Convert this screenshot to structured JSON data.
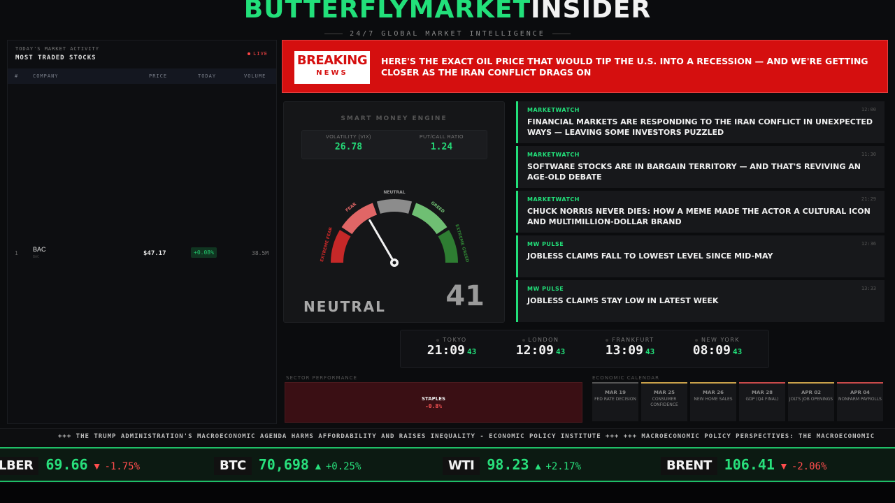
{
  "header": {
    "brand_green": "BUTTERFLYMARKET",
    "brand_white": "INSIDER",
    "tagline": "24/7 GLOBAL MARKET INTELLIGENCE"
  },
  "stocks_panel": {
    "subtitle": "TODAY'S MARKET ACTIVITY",
    "title": "MOST TRADED STOCKS",
    "live_label": "LIVE",
    "columns": [
      "#",
      "COMPANY",
      "PRICE",
      "TODAY",
      "VOLUME"
    ],
    "rows": [
      {
        "rank": "1",
        "company": "BAC",
        "ticker": "BAC",
        "price": "$47.17",
        "change": "+0.08%",
        "volume": "38.5M"
      }
    ]
  },
  "breaking": {
    "logo_line1": "BREAKING",
    "logo_line2": "NEWS",
    "headline": "HERE'S THE EXACT OIL PRICE THAT WOULD TIP THE U.S. INTO A RECESSION — AND WE'RE GETTING CLOSER AS THE IRAN CONFLICT DRAGS ON"
  },
  "gauge": {
    "title": "SMART MONEY ENGINE",
    "stats": [
      {
        "label": "VOLATILITY (VIX)",
        "value": "26.78"
      },
      {
        "label": "PUT/CALL RATIO",
        "value": "1.24"
      }
    ],
    "zones": [
      "EXTREME FEAR",
      "FEAR",
      "NEUTRAL",
      "GREED",
      "EXTREME GREED"
    ],
    "state": "NEUTRAL",
    "score": "41",
    "score_value": 41,
    "colors": {
      "extreme_fear": "#c62828",
      "fear": "#e06666",
      "neutral": "#8c8c8c",
      "greed": "#6fbf73",
      "extreme_greed": "#2e7d32"
    }
  },
  "news": [
    {
      "source": "MARKETWATCH",
      "time": "12:00",
      "headline": "FINANCIAL MARKETS ARE RESPONDING TO THE IRAN CONFLICT IN UNEXPECTED WAYS — LEAVING SOME INVESTORS PUZZLED"
    },
    {
      "source": "MARKETWATCH",
      "time": "11:30",
      "headline": "SOFTWARE STOCKS ARE IN BARGAIN TERRITORY — AND THAT'S REVIVING AN AGE-OLD DEBATE"
    },
    {
      "source": "MARKETWATCH",
      "time": "21:29",
      "headline": "CHUCK NORRIS NEVER DIES: HOW A MEME MADE THE ACTOR A CULTURAL ICON AND MULTIMILLION-DOLLAR BRAND"
    },
    {
      "source": "MW PULSE",
      "time": "12:36",
      "headline": "JOBLESS CLAIMS FALL TO LOWEST LEVEL SINCE MID-MAY"
    },
    {
      "source": "MW PULSE",
      "time": "13:33",
      "headline": "JOBLESS CLAIMS STAY LOW IN LATEST WEEK"
    }
  ],
  "clocks": [
    {
      "city": "TOKYO",
      "time": "21:09",
      "seconds": "43"
    },
    {
      "city": "LONDON",
      "time": "12:09",
      "seconds": "43"
    },
    {
      "city": "FRANKFURT",
      "time": "13:09",
      "seconds": "43"
    },
    {
      "city": "NEW YORK",
      "time": "08:09",
      "seconds": "43"
    }
  ],
  "sector": {
    "heading": "SECTOR PERFORMANCE",
    "name": "STAPLES",
    "change": "-0.8%"
  },
  "calendar": {
    "heading": "ECONOMIC CALENDAR",
    "events": [
      {
        "date": "MAR 19",
        "event": "FED RATE DECISION",
        "color": "#555555"
      },
      {
        "date": "MAR 25",
        "event": "CONSUMER CONFIDENCE",
        "color": "#c9a14a"
      },
      {
        "date": "MAR 26",
        "event": "NEW HOME SALES",
        "color": "#c9a14a"
      },
      {
        "date": "MAR 28",
        "event": "GDP (Q4 FINAL)",
        "color": "#c94a4a"
      },
      {
        "date": "APR 02",
        "event": "JOLTS JOB OPENINGS",
        "color": "#c9a14a"
      },
      {
        "date": "APR 04",
        "event": "NONFARM PAYROLLS",
        "color": "#c94a4a"
      }
    ]
  },
  "ticker_text": "+++ THE TRUMP ADMINISTRATION'S MACROECONOMIC AGENDA HARMS AFFORDABILITY AND RAISES INEQUALITY - ECONOMIC POLICY INSTITUTE +++ +++ MACROECONOMIC POLICY PERSPECTIVES: THE MACROECONOMIC",
  "quotes": [
    {
      "symbol": "LBER",
      "price": "69.66",
      "arrow": "▼",
      "change": "-1.75%",
      "dir": "down"
    },
    {
      "symbol": "BTC",
      "price": "70,698",
      "arrow": "▲",
      "change": "+0.25%",
      "dir": "up"
    },
    {
      "symbol": "WTI",
      "price": "98.23",
      "arrow": "▲",
      "change": "+2.17%",
      "dir": "up"
    },
    {
      "symbol": "BRENT",
      "price": "106.41",
      "arrow": "▼",
      "change": "-2.06%",
      "dir": "down"
    }
  ]
}
